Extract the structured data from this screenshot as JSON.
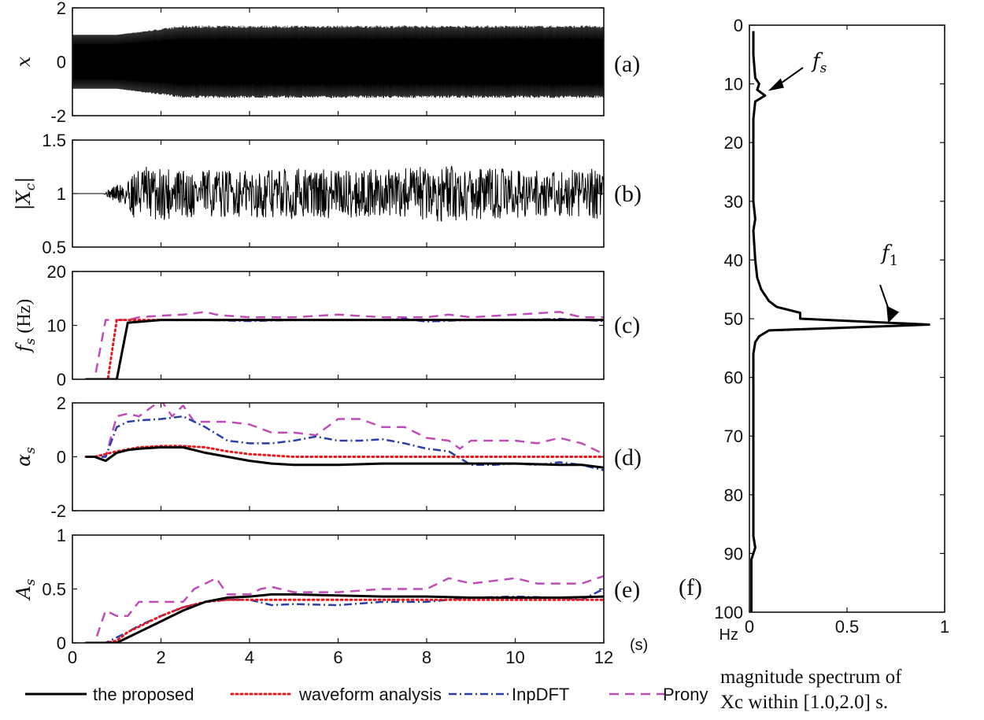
{
  "chart_data": [
    {
      "id": "a",
      "type": "line",
      "panel_label": "(a)",
      "ylabel": "x",
      "ylim": [
        -2,
        2
      ],
      "yticks": [
        -2,
        0,
        2
      ],
      "xlim": [
        0,
        12
      ],
      "signal": {
        "start": 0,
        "end": 12,
        "base_amplitude": 1.0,
        "grown_amplitude": 1.3,
        "growth_start": 1.0,
        "growth_end": 2.5
      }
    },
    {
      "id": "b",
      "type": "line",
      "panel_label": "(b)",
      "ylabel": "|Xc|",
      "ylim": [
        0.5,
        1.5
      ],
      "yticks": [
        0.5,
        1,
        1.5
      ],
      "yticklabels": [
        "0.5",
        "1",
        "1.5"
      ],
      "xlim": [
        0,
        12
      ],
      "signal": {
        "start": 0,
        "end": 12,
        "center": 1.0,
        "flat_until": 0.7,
        "noise_amplitude": 0.22
      }
    },
    {
      "id": "c",
      "type": "line",
      "panel_label": "(c)",
      "ylabel": "fs (Hz)",
      "ylim": [
        0,
        20
      ],
      "yticks": [
        0,
        10,
        20
      ],
      "xlim": [
        0,
        12
      ],
      "series": [
        {
          "name": "the proposed",
          "x": [
            0.3,
            1.0,
            1.25,
            2,
            3,
            4,
            5,
            6,
            7,
            8,
            9,
            10,
            11,
            12
          ],
          "y": [
            0,
            0,
            10.5,
            11,
            11,
            11,
            11,
            11,
            11,
            11,
            11,
            11,
            11,
            11
          ]
        },
        {
          "name": "waveform analysis",
          "x": [
            0.3,
            0.8,
            1.0,
            2,
            3,
            4,
            5,
            6,
            7,
            8,
            9,
            10,
            11,
            12
          ],
          "y": [
            0,
            0,
            11,
            11,
            11,
            11,
            11,
            11,
            11,
            11,
            11,
            11,
            11,
            11
          ]
        },
        {
          "name": "InpDFT",
          "x": [
            0.3,
            1.0,
            1.25,
            2,
            3,
            4,
            5,
            6,
            7,
            7.5,
            8,
            9,
            10,
            11,
            12
          ],
          "y": [
            0,
            0,
            10.5,
            11,
            11,
            10.8,
            11,
            11,
            11,
            11.2,
            10.7,
            11,
            11,
            11.2,
            10.8
          ]
        },
        {
          "name": "Prony",
          "x": [
            0.3,
            0.5,
            0.75,
            1.25,
            1.5,
            2,
            2.5,
            3,
            3.25,
            3.5,
            4,
            5,
            6,
            7,
            8,
            8.5,
            9,
            10,
            11,
            11.5,
            12
          ],
          "y": [
            0,
            0,
            11,
            11,
            11.5,
            11.8,
            12,
            12.5,
            12,
            11.8,
            11.5,
            11.5,
            12,
            11.5,
            11.5,
            12,
            11.5,
            12,
            12.5,
            11.5,
            11.5
          ]
        }
      ]
    },
    {
      "id": "d",
      "type": "line",
      "panel_label": "(d)",
      "ylabel": "αs",
      "ylim": [
        -2,
        2
      ],
      "yticks": [
        -2,
        0,
        2
      ],
      "xlim": [
        0,
        12
      ],
      "series": [
        {
          "name": "the proposed",
          "x": [
            0.3,
            0.5,
            0.75,
            1.0,
            1.25,
            1.5,
            2,
            2.5,
            3,
            3.5,
            4,
            4.5,
            5,
            6,
            7,
            8,
            9,
            10,
            11,
            11.5,
            12
          ],
          "y": [
            0,
            0,
            -0.15,
            0.15,
            0.25,
            0.3,
            0.35,
            0.35,
            0.15,
            0,
            -0.15,
            -0.25,
            -0.3,
            -0.3,
            -0.25,
            -0.25,
            -0.25,
            -0.25,
            -0.3,
            -0.3,
            -0.4
          ]
        },
        {
          "name": "waveform analysis",
          "x": [
            0.3,
            0.5,
            1.0,
            1.5,
            2,
            2.5,
            3,
            3.5,
            4,
            5,
            6,
            7,
            8,
            9,
            10,
            11,
            12
          ],
          "y": [
            0,
            0,
            0.2,
            0.35,
            0.4,
            0.4,
            0.35,
            0.2,
            0.1,
            0,
            0,
            0,
            0,
            0,
            0,
            0,
            0
          ]
        },
        {
          "name": "InpDFT",
          "x": [
            0.3,
            0.75,
            1.0,
            1.25,
            1.5,
            2,
            2.5,
            3,
            3.5,
            4,
            4.5,
            5,
            5.5,
            6,
            6.5,
            7,
            7.5,
            8,
            8.5,
            9,
            9.5,
            10,
            10.5,
            11,
            11.5,
            12
          ],
          "y": [
            0,
            0,
            1.1,
            1.3,
            1.35,
            1.4,
            1.5,
            1.1,
            0.6,
            0.5,
            0.5,
            0.6,
            0.75,
            0.6,
            0.6,
            0.65,
            0.5,
            0.3,
            0.2,
            -0.3,
            -0.3,
            -0.25,
            -0.3,
            -0.2,
            -0.3,
            -0.5
          ]
        },
        {
          "name": "Prony",
          "x": [
            0.3,
            0.75,
            1.0,
            1.25,
            1.5,
            2,
            2.25,
            2.5,
            2.75,
            3,
            3.5,
            4,
            4.5,
            5,
            5.5,
            6,
            6.5,
            7,
            7.5,
            8,
            8.5,
            8.75,
            9,
            9.5,
            10,
            10.5,
            11,
            11.5,
            12
          ],
          "y": [
            0,
            0,
            1.5,
            1.6,
            1.5,
            2.1,
            1.5,
            1.9,
            1.3,
            1.3,
            1.3,
            1.2,
            0.9,
            0.9,
            0.8,
            1.4,
            1.4,
            1.1,
            1.1,
            0.7,
            0.6,
            0.3,
            0.6,
            0.6,
            0.6,
            0.5,
            0.7,
            0.5,
            0.1
          ]
        }
      ]
    },
    {
      "id": "e",
      "type": "line",
      "panel_label": "(e)",
      "ylabel": "As",
      "ylim": [
        0,
        1
      ],
      "yticks": [
        0,
        0.5,
        1
      ],
      "yticklabels": [
        "0",
        "0.5",
        "1"
      ],
      "xlim": [
        0,
        12
      ],
      "xticks": [
        0,
        2,
        4,
        6,
        8,
        10,
        12
      ],
      "xunit": "(s)",
      "series": [
        {
          "name": "the proposed",
          "x": [
            0.3,
            0.75,
            1.0,
            1.25,
            1.5,
            2,
            2.5,
            3,
            3.5,
            4,
            4.5,
            5,
            6,
            7,
            8,
            9,
            10,
            11,
            12
          ],
          "y": [
            0,
            0,
            0,
            0.05,
            0.1,
            0.2,
            0.3,
            0.38,
            0.42,
            0.43,
            0.45,
            0.45,
            0.44,
            0.43,
            0.43,
            0.42,
            0.42,
            0.42,
            0.43
          ]
        },
        {
          "name": "waveform analysis",
          "x": [
            0.3,
            0.75,
            1.0,
            1.25,
            1.5,
            2,
            2.5,
            3,
            3.5,
            4,
            5,
            6,
            7,
            8,
            9,
            10,
            11,
            12
          ],
          "y": [
            0,
            0,
            0.02,
            0.1,
            0.15,
            0.25,
            0.33,
            0.38,
            0.4,
            0.4,
            0.4,
            0.4,
            0.4,
            0.4,
            0.4,
            0.4,
            0.4,
            0.4
          ]
        },
        {
          "name": "InpDFT",
          "x": [
            0.3,
            0.75,
            1.0,
            1.25,
            1.5,
            2,
            2.5,
            3,
            3.5,
            4,
            4.5,
            5,
            6,
            7,
            8,
            9,
            10,
            11,
            11.5,
            12
          ],
          "y": [
            0,
            0,
            0.05,
            0.1,
            0.16,
            0.25,
            0.33,
            0.38,
            0.4,
            0.4,
            0.35,
            0.36,
            0.35,
            0.38,
            0.38,
            0.42,
            0.43,
            0.42,
            0.4,
            0.5
          ]
        },
        {
          "name": "Prony",
          "x": [
            0.3,
            0.5,
            0.75,
            1.0,
            1.25,
            1.5,
            2,
            2.5,
            2.75,
            3,
            3.25,
            3.5,
            4,
            4.25,
            4.5,
            5,
            6,
            7,
            8,
            8.5,
            9,
            10,
            10.5,
            11,
            11.5,
            12
          ],
          "y": [
            0,
            0,
            0.3,
            0.25,
            0.25,
            0.38,
            0.38,
            0.38,
            0.5,
            0.55,
            0.6,
            0.45,
            0.45,
            0.5,
            0.52,
            0.47,
            0.47,
            0.5,
            0.5,
            0.6,
            0.55,
            0.6,
            0.55,
            0.55,
            0.55,
            0.62
          ]
        }
      ]
    },
    {
      "id": "f",
      "type": "line",
      "panel_label": "(f)",
      "title": "magnitude spectrum of Xc within [1.0,2.0] s.",
      "xlim": [
        0,
        1
      ],
      "xticks": [
        0,
        0.5,
        1
      ],
      "xticklabels": [
        "0",
        "0.5",
        "1"
      ],
      "xunit": "Hz",
      "ylim": [
        0,
        100
      ],
      "yticks": [
        0,
        10,
        20,
        30,
        40,
        50,
        60,
        70,
        80,
        90,
        100
      ],
      "y_reversed": true,
      "series": [
        {
          "name": "spectrum",
          "freq": [
            1,
            5,
            9,
            10,
            11,
            12,
            13,
            16,
            20,
            25,
            30,
            33,
            35,
            40,
            43,
            45,
            47,
            48,
            49,
            50,
            51,
            52,
            53,
            54,
            56,
            60,
            66,
            70,
            80,
            87,
            89,
            90,
            91,
            95,
            100
          ],
          "magnitude": [
            0.02,
            0.02,
            0.03,
            0.05,
            0.04,
            0.08,
            0.03,
            0.02,
            0.02,
            0.02,
            0.02,
            0.03,
            0.02,
            0.03,
            0.04,
            0.06,
            0.1,
            0.14,
            0.26,
            0.26,
            0.92,
            0.1,
            0.05,
            0.03,
            0.02,
            0.02,
            0.02,
            0.02,
            0.02,
            0.02,
            0.03,
            0.02,
            0.01,
            0.01,
            0.01
          ]
        }
      ],
      "annotations": [
        {
          "label": "fs",
          "at_freq": 12,
          "at_magnitude": 0.08
        },
        {
          "label": "f1",
          "at_freq": 51,
          "at_magnitude": 0.92
        }
      ]
    }
  ],
  "legend": [
    {
      "name": "the proposed",
      "color": "#000000",
      "style": "solid"
    },
    {
      "name": "waveform analysis",
      "color": "#e41a1c",
      "style": "dotted"
    },
    {
      "name": "InpDFT",
      "color": "#2b3fa8",
      "style": "dashdot"
    },
    {
      "name": "Prony",
      "color": "#c04cb8",
      "style": "dashed"
    }
  ],
  "caption": {
    "line1": "magnitude spectrum of",
    "line2": "Xc within [1.0,2.0] s."
  }
}
